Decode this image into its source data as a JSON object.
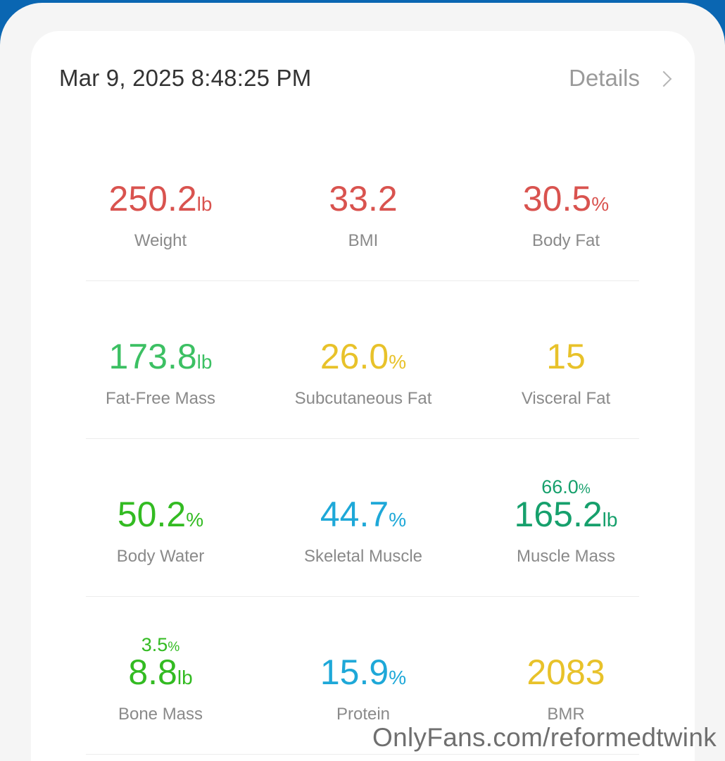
{
  "colors": {
    "red": "#d9534f",
    "green": "#3cc063",
    "yellow": "#e8c22a",
    "teal": "#16a06c",
    "cyan": "#1ea8d8",
    "bright_green": "#33bb22"
  },
  "header": {
    "datetime": "Mar 9, 2025 8:48:25 PM",
    "details_label": "Details"
  },
  "metrics": [
    [
      {
        "value": "250.2",
        "unit": "lb",
        "label": "Weight",
        "color": "#d9534f"
      },
      {
        "value": "33.2",
        "unit": "",
        "label": "BMI",
        "color": "#d9534f"
      },
      {
        "value": "30.5",
        "unit": "%",
        "label": "Body Fat",
        "color": "#d9534f"
      }
    ],
    [
      {
        "value": "173.8",
        "unit": "lb",
        "label": "Fat-Free Mass",
        "color": "#3cc063"
      },
      {
        "value": "26.0",
        "unit": "%",
        "label": "Subcutaneous Fat",
        "color": "#e8c22a"
      },
      {
        "value": "15",
        "unit": "",
        "label": "Visceral Fat",
        "color": "#e8c22a"
      }
    ],
    [
      {
        "value": "50.2",
        "unit": "%",
        "label": "Body Water",
        "color": "#33bb22"
      },
      {
        "value": "44.7",
        "unit": "%",
        "label": "Skeletal Muscle",
        "color": "#1ea8d8"
      },
      {
        "value": "165.2",
        "unit": "lb",
        "label": "Muscle Mass",
        "color": "#16a06c",
        "sub_value": "66.0",
        "sub_unit": "%"
      }
    ],
    [
      {
        "value": "8.8",
        "unit": "lb",
        "label": "Bone Mass",
        "color": "#33bb22",
        "sub_value": "3.5",
        "sub_unit": "%"
      },
      {
        "value": "15.9",
        "unit": "%",
        "label": "Protein",
        "color": "#1ea8d8"
      },
      {
        "value": "2083",
        "unit": "",
        "label": "BMR",
        "color": "#e8c22a"
      }
    ]
  ],
  "watermark": "OnlyFans.com/reformedtwink"
}
